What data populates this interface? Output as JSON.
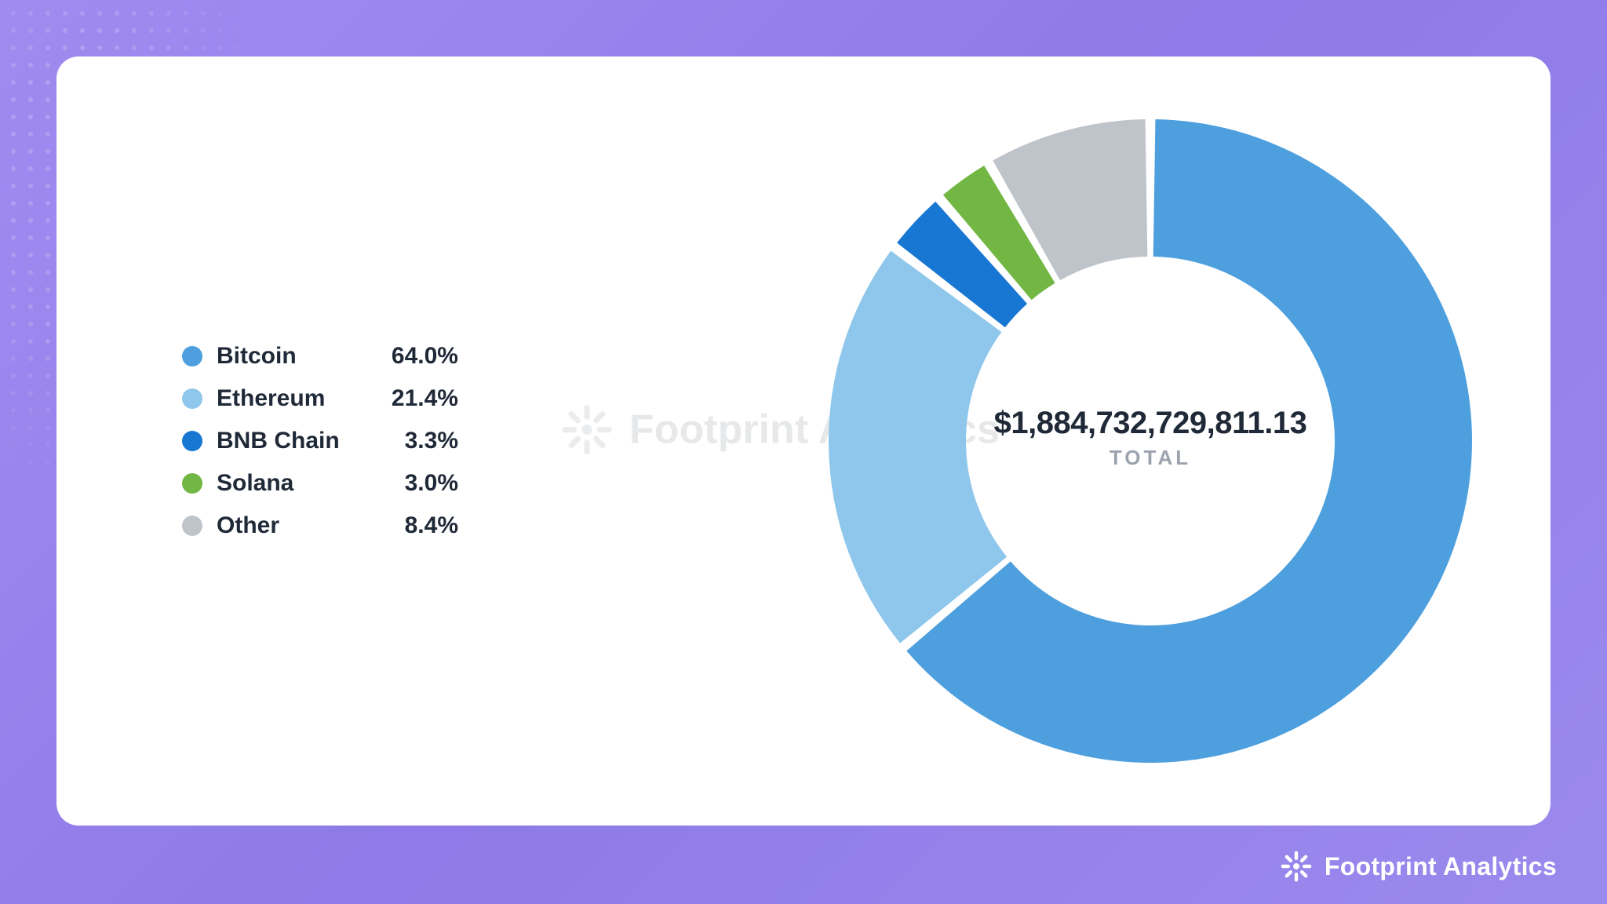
{
  "background_gradient": [
    "#a08cf0",
    "#8e7ae8",
    "#9b8aed"
  ],
  "card": {
    "background_color": "#ffffff",
    "border_radius": 28
  },
  "chart": {
    "type": "donut",
    "slices": [
      {
        "label": "Bitcoin",
        "value": 64.0,
        "display": "64.0%",
        "color": "#4e9fde"
      },
      {
        "label": "Ethereum",
        "value": 21.4,
        "display": "21.4%",
        "color": "#8ec7eb"
      },
      {
        "label": "BNB Chain",
        "value": 3.3,
        "display": "3.3%",
        "color": "#1877d2"
      },
      {
        "label": "Solana",
        "value": 3.0,
        "display": "3.0%",
        "color": "#72b744"
      },
      {
        "label": "Other",
        "value": 8.4,
        "display": "8.4%",
        "color": "#bfc4cb"
      }
    ],
    "gap_degrees": 1.8,
    "outer_radius": 410,
    "inner_radius": 235,
    "center_value": "$1,884,732,729,811.13",
    "center_sublabel": "TOTAL",
    "center_value_fontsize": 40,
    "center_value_color": "#1f2937",
    "center_sublabel_fontsize": 26,
    "center_sublabel_color": "#9ca3af"
  },
  "legend": {
    "swatch_diameter": 26,
    "label_fontsize": 30,
    "label_weight": 600,
    "value_weight": 700,
    "text_color": "#1f2937"
  },
  "watermark": {
    "text": "Footprint Analytics",
    "opacity": 0.13,
    "color": "#4b5563",
    "fontsize": 52
  },
  "footer_brand": {
    "text": "Footprint Analytics",
    "color": "#ffffff",
    "fontsize": 32
  }
}
